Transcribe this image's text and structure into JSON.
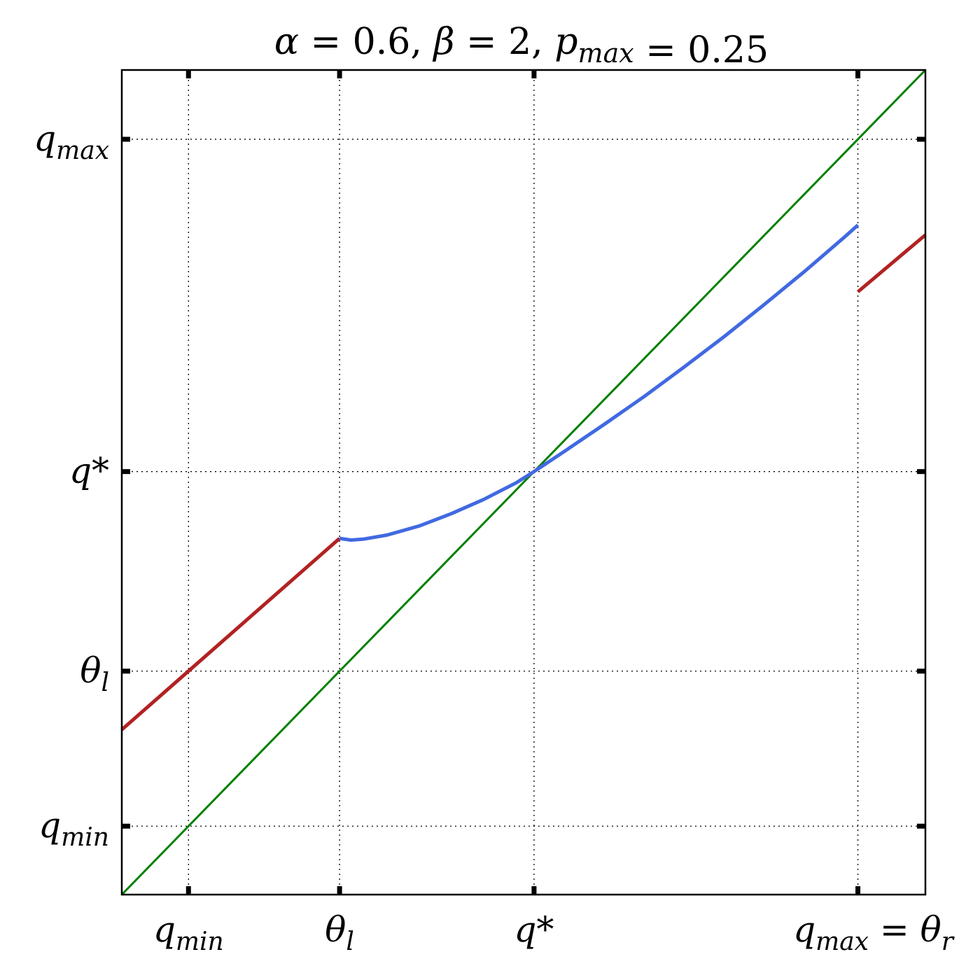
{
  "chart_data": {
    "type": "line",
    "title": "α = 0.6, β = 2, p_max = 0.25",
    "title_parts": [
      {
        "text": "α",
        "sub": null,
        "italic": true
      },
      {
        "text": " = 0.6, ",
        "sub": null,
        "italic": false
      },
      {
        "text": "β",
        "sub": null,
        "italic": true
      },
      {
        "text": " = 2, ",
        "sub": null,
        "italic": false
      },
      {
        "text": "p",
        "sub": "max",
        "italic": true
      },
      {
        "text": " = 0.25",
        "sub": null,
        "italic": false
      }
    ],
    "xlim": [
      0,
      1
    ],
    "ylim": [
      0,
      1
    ],
    "grid": "dotted",
    "x_ticks": [
      {
        "value": 0.083,
        "label": "q",
        "sub": "min",
        "suffix": ""
      },
      {
        "value": 0.271,
        "label": "θ",
        "sub": "l",
        "suffix": ""
      },
      {
        "value": 0.513,
        "label": "q*",
        "sub": "",
        "suffix": ""
      },
      {
        "value": 0.916,
        "label": "q",
        "sub": "max",
        "suffix": " = θ",
        "suffix_sub": "r"
      }
    ],
    "y_ticks": [
      {
        "value": 0.083,
        "label": "q",
        "sub": "min"
      },
      {
        "value": 0.271,
        "label": "θ",
        "sub": "l"
      },
      {
        "value": 0.513,
        "label": "q*",
        "sub": ""
      },
      {
        "value": 0.916,
        "label": "q",
        "sub": "max"
      }
    ],
    "series": [
      {
        "color": "#008000",
        "width": 3,
        "x": [
          0,
          1
        ],
        "y": [
          0,
          1
        ]
      },
      {
        "color": "#b22222",
        "width": 5,
        "x": [
          0,
          0.271
        ],
        "y": [
          0.2,
          0.432
        ]
      },
      {
        "color": "#4169e1",
        "width": 5,
        "x": [
          0.271,
          0.285,
          0.3,
          0.33,
          0.37,
          0.41,
          0.45,
          0.49,
          0.513,
          0.55,
          0.6,
          0.65,
          0.7,
          0.75,
          0.8,
          0.85,
          0.9,
          0.916
        ],
        "y": [
          0.432,
          0.43,
          0.431,
          0.436,
          0.447,
          0.462,
          0.479,
          0.499,
          0.513,
          0.537,
          0.57,
          0.604,
          0.64,
          0.677,
          0.716,
          0.756,
          0.798,
          0.812
        ]
      },
      {
        "color": "#b22222",
        "width": 5,
        "x": [
          0.916,
          1
        ],
        "y": [
          0.731,
          0.8
        ]
      }
    ]
  }
}
